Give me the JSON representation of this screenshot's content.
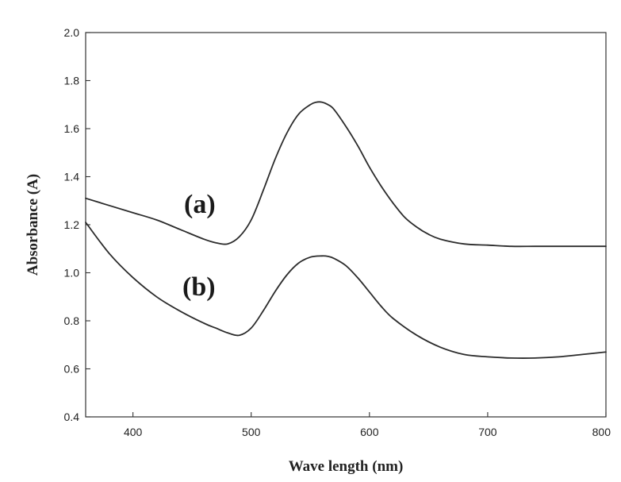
{
  "chart_data": {
    "type": "line",
    "title": "",
    "xlabel": "Wave length (nm)",
    "ylabel": "Absorbance (A)",
    "xlim": [
      360,
      800
    ],
    "ylim": [
      0.4,
      2.0
    ],
    "x_ticks": [
      400,
      500,
      600,
      700,
      800
    ],
    "y_ticks": [
      0.4,
      0.6,
      0.8,
      1.0,
      1.2,
      1.4,
      1.6,
      1.8,
      2.0
    ],
    "x_tick_labels": [
      "400",
      "500",
      "600",
      "700",
      "800"
    ],
    "y_tick_labels": [
      "0.4",
      "0.6",
      "0.8",
      "1.0",
      "1.2",
      "1.4",
      "1.6",
      "1.8",
      "2.0"
    ],
    "grid": false,
    "legend": "none",
    "series": [
      {
        "name": "(a)",
        "color": "#2b2b2b",
        "x": [
          360,
          380,
          400,
          420,
          440,
          460,
          470,
          480,
          490,
          500,
          510,
          520,
          530,
          540,
          550,
          555,
          560,
          565,
          570,
          580,
          590,
          600,
          610,
          620,
          630,
          640,
          650,
          660,
          680,
          700,
          720,
          740,
          760,
          780,
          800
        ],
        "y": [
          1.31,
          1.28,
          1.25,
          1.22,
          1.18,
          1.14,
          1.125,
          1.12,
          1.15,
          1.22,
          1.34,
          1.47,
          1.58,
          1.66,
          1.7,
          1.71,
          1.71,
          1.7,
          1.68,
          1.61,
          1.53,
          1.44,
          1.36,
          1.29,
          1.23,
          1.19,
          1.16,
          1.14,
          1.12,
          1.115,
          1.11,
          1.11,
          1.11,
          1.11,
          1.11
        ]
      },
      {
        "name": "(b)",
        "color": "#2b2b2b",
        "x": [
          360,
          380,
          400,
          420,
          440,
          460,
          470,
          480,
          490,
          500,
          510,
          520,
          530,
          540,
          550,
          560,
          565,
          570,
          580,
          590,
          600,
          610,
          620,
          640,
          660,
          680,
          700,
          720,
          740,
          760,
          780,
          800
        ],
        "y": [
          1.21,
          1.08,
          0.98,
          0.9,
          0.84,
          0.79,
          0.77,
          0.75,
          0.74,
          0.77,
          0.84,
          0.92,
          0.99,
          1.04,
          1.065,
          1.07,
          1.068,
          1.06,
          1.03,
          0.98,
          0.92,
          0.86,
          0.81,
          0.74,
          0.69,
          0.66,
          0.65,
          0.645,
          0.645,
          0.65,
          0.66,
          0.67
        ]
      }
    ]
  }
}
